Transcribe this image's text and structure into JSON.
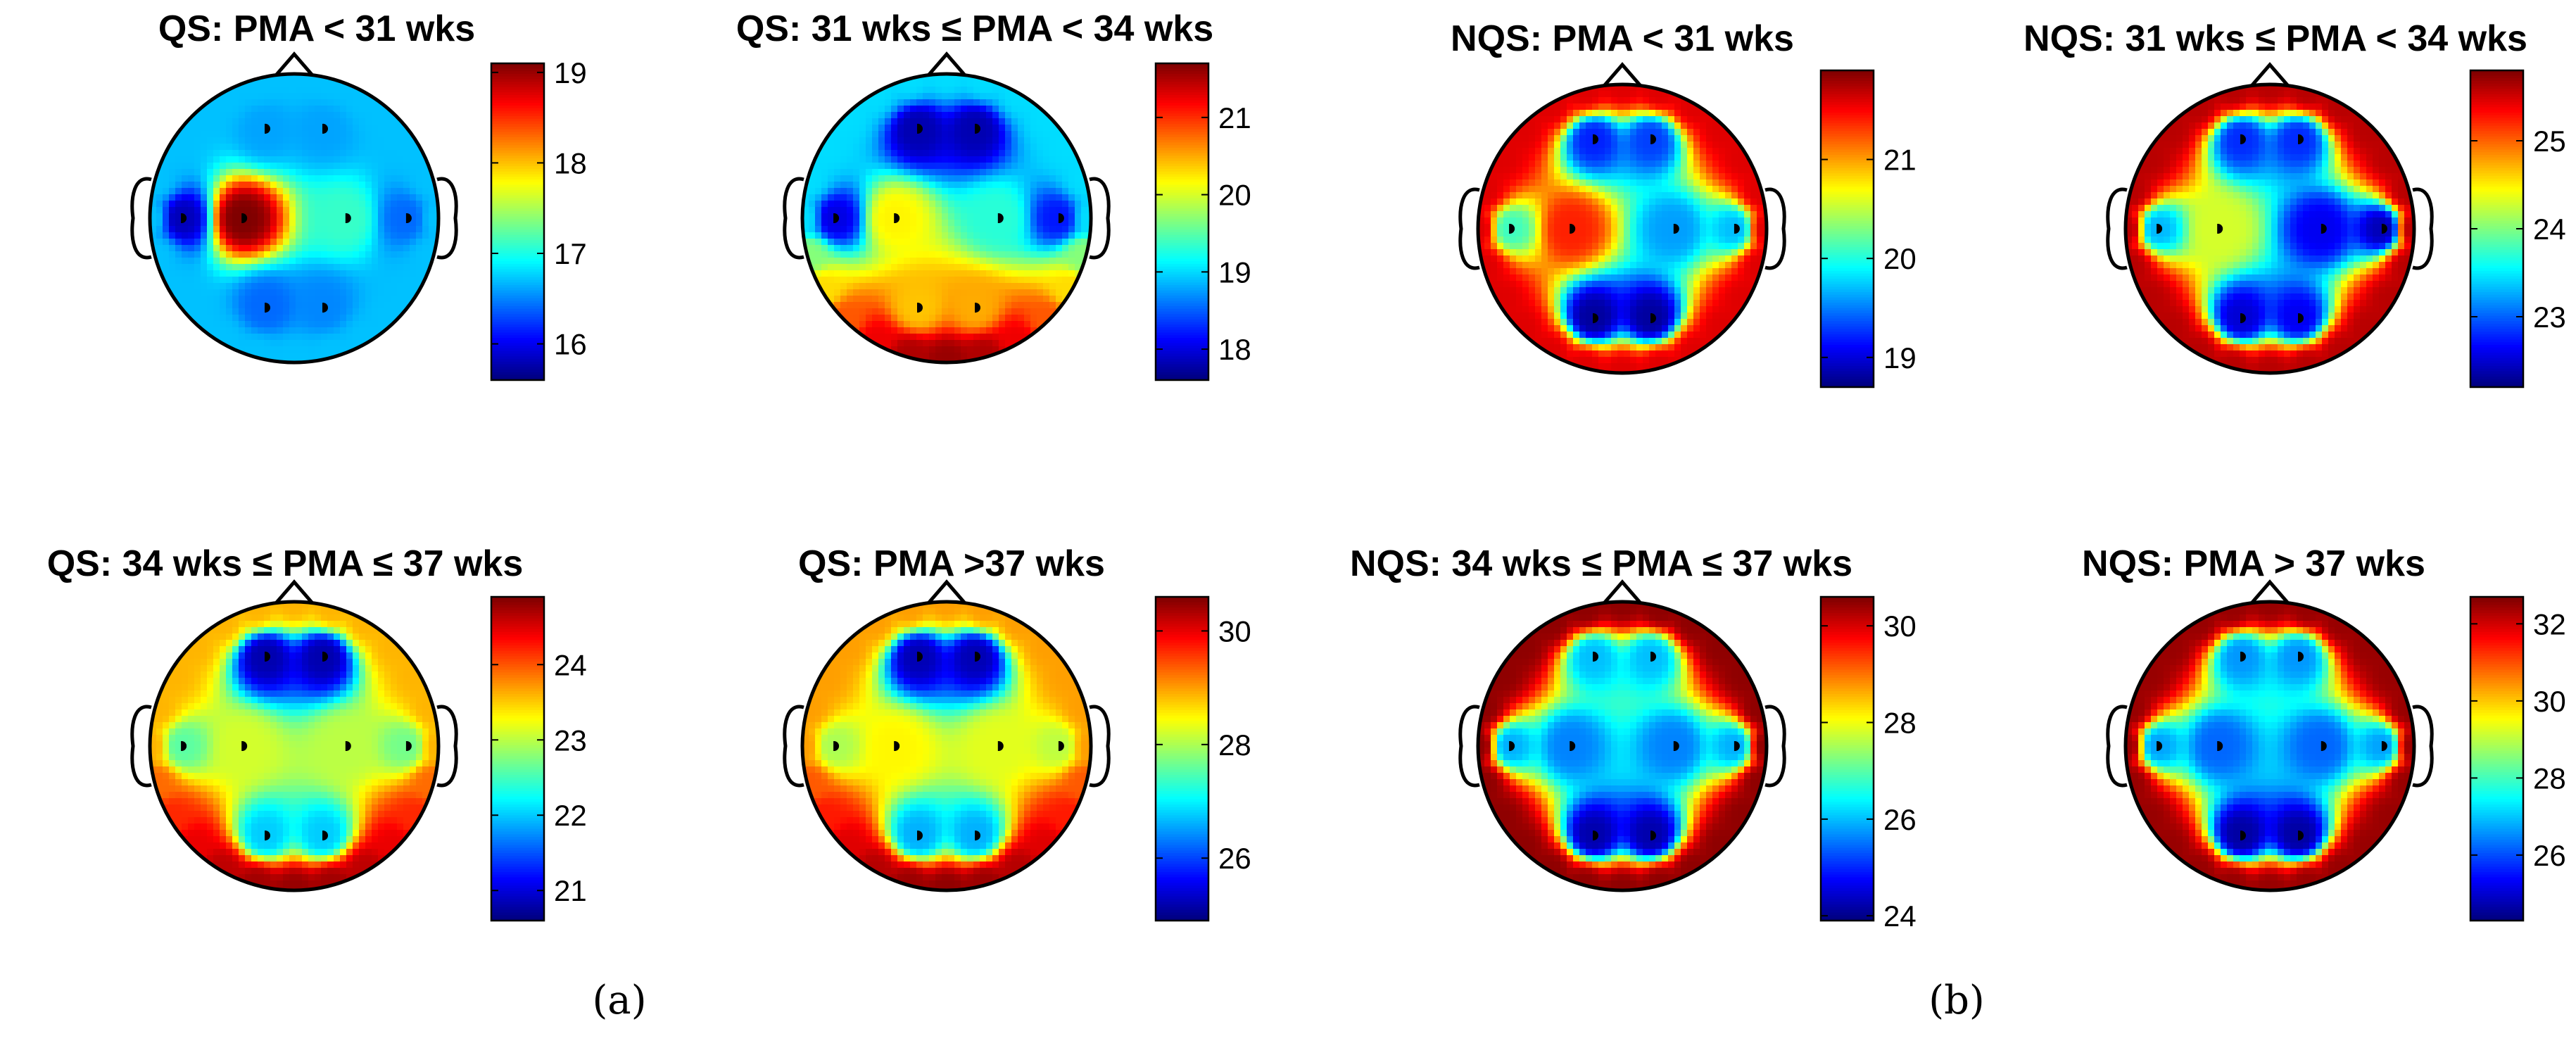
{
  "figure_captions": [
    "(a)",
    "(b)"
  ],
  "chart_data": [
    {
      "type": "heatmap",
      "subtype": "scalp-topoplot",
      "title": "QS: PMA < 31 wks",
      "group": "(a)",
      "colormap": "jet",
      "colorbar": {
        "min": 15.6,
        "max": 19.1,
        "ticks": [
          16,
          17,
          18,
          19
        ]
      },
      "electrodes": [
        {
          "x": -0.2,
          "y": 0.62,
          "value": 16.6
        },
        {
          "x": 0.2,
          "y": 0.62,
          "value": 16.6
        },
        {
          "x": -0.78,
          "y": 0.0,
          "value": 15.8
        },
        {
          "x": -0.36,
          "y": 0.0,
          "value": 19.1
        },
        {
          "x": 0.36,
          "y": 0.0,
          "value": 17.1
        },
        {
          "x": 0.78,
          "y": 0.0,
          "value": 16.4
        },
        {
          "x": -0.2,
          "y": -0.62,
          "value": 16.4
        },
        {
          "x": 0.2,
          "y": -0.62,
          "value": 16.5
        }
      ],
      "rim_value": 16.7
    },
    {
      "type": "heatmap",
      "subtype": "scalp-topoplot",
      "title": "QS: 31 wks ≤ PMA < 34 wks",
      "group": "(a)",
      "colormap": "jet",
      "colorbar": {
        "min": 17.6,
        "max": 21.7,
        "ticks": [
          18,
          19,
          20,
          21
        ]
      },
      "electrodes": [
        {
          "x": -0.2,
          "y": 0.62,
          "value": 17.8
        },
        {
          "x": 0.2,
          "y": 0.62,
          "value": 17.8
        },
        {
          "x": -0.78,
          "y": 0.0,
          "value": 18.0
        },
        {
          "x": -0.36,
          "y": 0.0,
          "value": 20.2
        },
        {
          "x": 0.36,
          "y": 0.0,
          "value": 19.3
        },
        {
          "x": 0.78,
          "y": 0.0,
          "value": 18.2
        },
        {
          "x": -0.2,
          "y": -0.62,
          "value": 20.4
        },
        {
          "x": 0.2,
          "y": -0.62,
          "value": 20.5
        }
      ],
      "rim_value": 19.0,
      "bottom_rim_value": 21.6
    },
    {
      "type": "heatmap",
      "subtype": "scalp-topoplot",
      "title": "NQS: PMA < 31 wks",
      "group": "(b)",
      "colormap": "jet",
      "colorbar": {
        "min": 18.7,
        "max": 21.9,
        "ticks": [
          19,
          20,
          21
        ]
      },
      "electrodes": [
        {
          "x": -0.2,
          "y": 0.62,
          "value": 19.2
        },
        {
          "x": 0.2,
          "y": 0.62,
          "value": 19.3
        },
        {
          "x": -0.78,
          "y": 0.0,
          "value": 20.1
        },
        {
          "x": -0.36,
          "y": 0.0,
          "value": 21.4
        },
        {
          "x": 0.36,
          "y": 0.0,
          "value": 19.6
        },
        {
          "x": 0.78,
          "y": 0.0,
          "value": 19.7
        },
        {
          "x": -0.2,
          "y": -0.62,
          "value": 18.8
        },
        {
          "x": 0.2,
          "y": -0.62,
          "value": 18.8
        }
      ],
      "rim_value": 21.6
    },
    {
      "type": "heatmap",
      "subtype": "scalp-topoplot",
      "title": "NQS: 31 wks ≤ PMA < 34 wks",
      "group": "(b)",
      "colormap": "jet",
      "colorbar": {
        "min": 22.2,
        "max": 25.8,
        "ticks": [
          23,
          24,
          25
        ]
      },
      "electrodes": [
        {
          "x": -0.2,
          "y": 0.62,
          "value": 22.8
        },
        {
          "x": 0.2,
          "y": 0.62,
          "value": 22.8
        },
        {
          "x": -0.78,
          "y": 0.0,
          "value": 23.3
        },
        {
          "x": -0.36,
          "y": 0.0,
          "value": 24.3
        },
        {
          "x": 0.36,
          "y": 0.0,
          "value": 22.6
        },
        {
          "x": 0.78,
          "y": 0.0,
          "value": 22.4
        },
        {
          "x": -0.2,
          "y": -0.62,
          "value": 22.5
        },
        {
          "x": 0.2,
          "y": -0.62,
          "value": 22.6
        }
      ],
      "rim_value": 25.6
    },
    {
      "type": "heatmap",
      "subtype": "scalp-topoplot",
      "title": "QS: 34 wks ≤ PMA ≤ 37 wks",
      "group": "(a)",
      "colormap": "jet",
      "colorbar": {
        "min": 20.6,
        "max": 24.9,
        "ticks": [
          21,
          22,
          23,
          24
        ]
      },
      "electrodes": [
        {
          "x": -0.2,
          "y": 0.62,
          "value": 20.8
        },
        {
          "x": 0.2,
          "y": 0.62,
          "value": 20.8
        },
        {
          "x": -0.78,
          "y": 0.0,
          "value": 22.6
        },
        {
          "x": -0.36,
          "y": 0.0,
          "value": 23.1
        },
        {
          "x": 0.36,
          "y": 0.0,
          "value": 23.0
        },
        {
          "x": 0.78,
          "y": 0.0,
          "value": 22.7
        },
        {
          "x": -0.2,
          "y": -0.62,
          "value": 22.0
        },
        {
          "x": 0.2,
          "y": -0.62,
          "value": 22.0
        }
      ],
      "rim_value": 23.6,
      "bottom_rim_value": 24.8
    },
    {
      "type": "heatmap",
      "subtype": "scalp-topoplot",
      "title": "QS: PMA >37 wks",
      "group": "(a)",
      "colormap": "jet",
      "colorbar": {
        "min": 24.9,
        "max": 30.6,
        "ticks": [
          26,
          28,
          30
        ]
      },
      "electrodes": [
        {
          "x": -0.2,
          "y": 0.62,
          "value": 25.2
        },
        {
          "x": 0.2,
          "y": 0.62,
          "value": 25.2
        },
        {
          "x": -0.78,
          "y": 0.0,
          "value": 28.0
        },
        {
          "x": -0.36,
          "y": 0.0,
          "value": 28.5
        },
        {
          "x": 0.36,
          "y": 0.0,
          "value": 28.3
        },
        {
          "x": 0.78,
          "y": 0.0,
          "value": 28.1
        },
        {
          "x": -0.2,
          "y": -0.62,
          "value": 26.6
        },
        {
          "x": 0.2,
          "y": -0.62,
          "value": 26.6
        }
      ],
      "rim_value": 29.0,
      "bottom_rim_value": 30.5
    },
    {
      "type": "heatmap",
      "subtype": "scalp-topoplot",
      "title": "NQS: 34 wks ≤ PMA ≤ 37 wks",
      "group": "(b)",
      "colormap": "jet",
      "colorbar": {
        "min": 23.9,
        "max": 30.6,
        "ticks": [
          24,
          26,
          28,
          30
        ]
      },
      "electrodes": [
        {
          "x": -0.2,
          "y": 0.62,
          "value": 26.0
        },
        {
          "x": 0.2,
          "y": 0.62,
          "value": 26.0
        },
        {
          "x": -0.78,
          "y": 0.0,
          "value": 25.9
        },
        {
          "x": -0.36,
          "y": 0.0,
          "value": 25.6
        },
        {
          "x": 0.36,
          "y": 0.0,
          "value": 25.6
        },
        {
          "x": 0.78,
          "y": 0.0,
          "value": 25.9
        },
        {
          "x": -0.2,
          "y": -0.62,
          "value": 24.2
        },
        {
          "x": 0.2,
          "y": -0.62,
          "value": 24.2
        }
      ],
      "rim_value": 30.5
    },
    {
      "type": "heatmap",
      "subtype": "scalp-topoplot",
      "title": "NQS: PMA > 37 wks",
      "group": "(b)",
      "colormap": "jet",
      "colorbar": {
        "min": 24.3,
        "max": 32.7,
        "ticks": [
          26,
          28,
          30,
          32
        ]
      },
      "electrodes": [
        {
          "x": -0.2,
          "y": 0.62,
          "value": 26.6
        },
        {
          "x": 0.2,
          "y": 0.62,
          "value": 26.6
        },
        {
          "x": -0.78,
          "y": 0.0,
          "value": 26.7
        },
        {
          "x": -0.36,
          "y": 0.0,
          "value": 26.2
        },
        {
          "x": 0.36,
          "y": 0.0,
          "value": 26.2
        },
        {
          "x": 0.78,
          "y": 0.0,
          "value": 26.7
        },
        {
          "x": -0.2,
          "y": -0.62,
          "value": 24.6
        },
        {
          "x": 0.2,
          "y": -0.62,
          "value": 24.6
        }
      ],
      "rim_value": 32.5
    }
  ]
}
